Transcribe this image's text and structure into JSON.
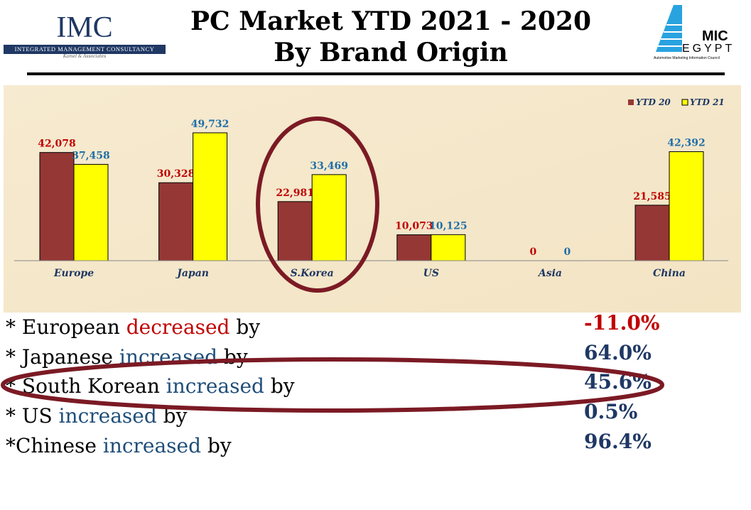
{
  "header": {
    "title_line1": "PC Market YTD 2021 - 2020",
    "title_line2": "By Brand Origin",
    "imc_logo": {
      "abbr": "IMC",
      "name": "INTEGRATED MANAGEMENT CONSULTANCY",
      "tagline": "Kamel & Associates"
    },
    "amic_logo": {
      "top": "MIC",
      "bottom": "EGYPT",
      "caption": "Automotive Marketing Information Council"
    }
  },
  "colors": {
    "ytd20": "#953735",
    "ytd21": "#ffff00",
    "label20": "#c00000",
    "label21": "#1f6fa8",
    "navy": "#1f3864",
    "red": "#c00000",
    "ellipse": "#7b1a24"
  },
  "chart_data": {
    "type": "bar",
    "title": "PC Market YTD 2021 - 2020 By Brand Origin",
    "categories": [
      "Europe",
      "Japan",
      "S.Korea",
      "US",
      "Asia",
      "China"
    ],
    "series": [
      {
        "name": "YTD 20",
        "values": [
          42078,
          30328,
          22981,
          10073,
          0,
          21585
        ],
        "labels": [
          "42,078",
          "30,328",
          "22,981",
          "10,073",
          "0",
          "21,585"
        ]
      },
      {
        "name": "YTD 21",
        "values": [
          37458,
          49732,
          33469,
          10125,
          0,
          42392
        ],
        "labels": [
          "37,458",
          "49,732",
          "33,469",
          "10,125",
          "0",
          "42,392"
        ]
      }
    ],
    "ylim": [
      0,
      50000
    ],
    "legend": "top-right",
    "grid": false,
    "highlight": "S.Korea"
  },
  "summary": [
    {
      "prefix": "* European ",
      "verb": "decreased",
      "suffix": " by",
      "value": "-11.0%",
      "neg": true
    },
    {
      "prefix": "* Japanese ",
      "verb": "increased",
      "suffix": " by",
      "value": "64.0%"
    },
    {
      "prefix": "* South Korean ",
      "verb": "increased",
      "suffix": " by",
      "value": "45.6%"
    },
    {
      "prefix": "* US ",
      "verb": "increased",
      "suffix": " by",
      "value": "0.5%"
    },
    {
      "prefix": "*Chinese ",
      "verb": "increased",
      "suffix": " by",
      "value": "96.4%"
    }
  ]
}
